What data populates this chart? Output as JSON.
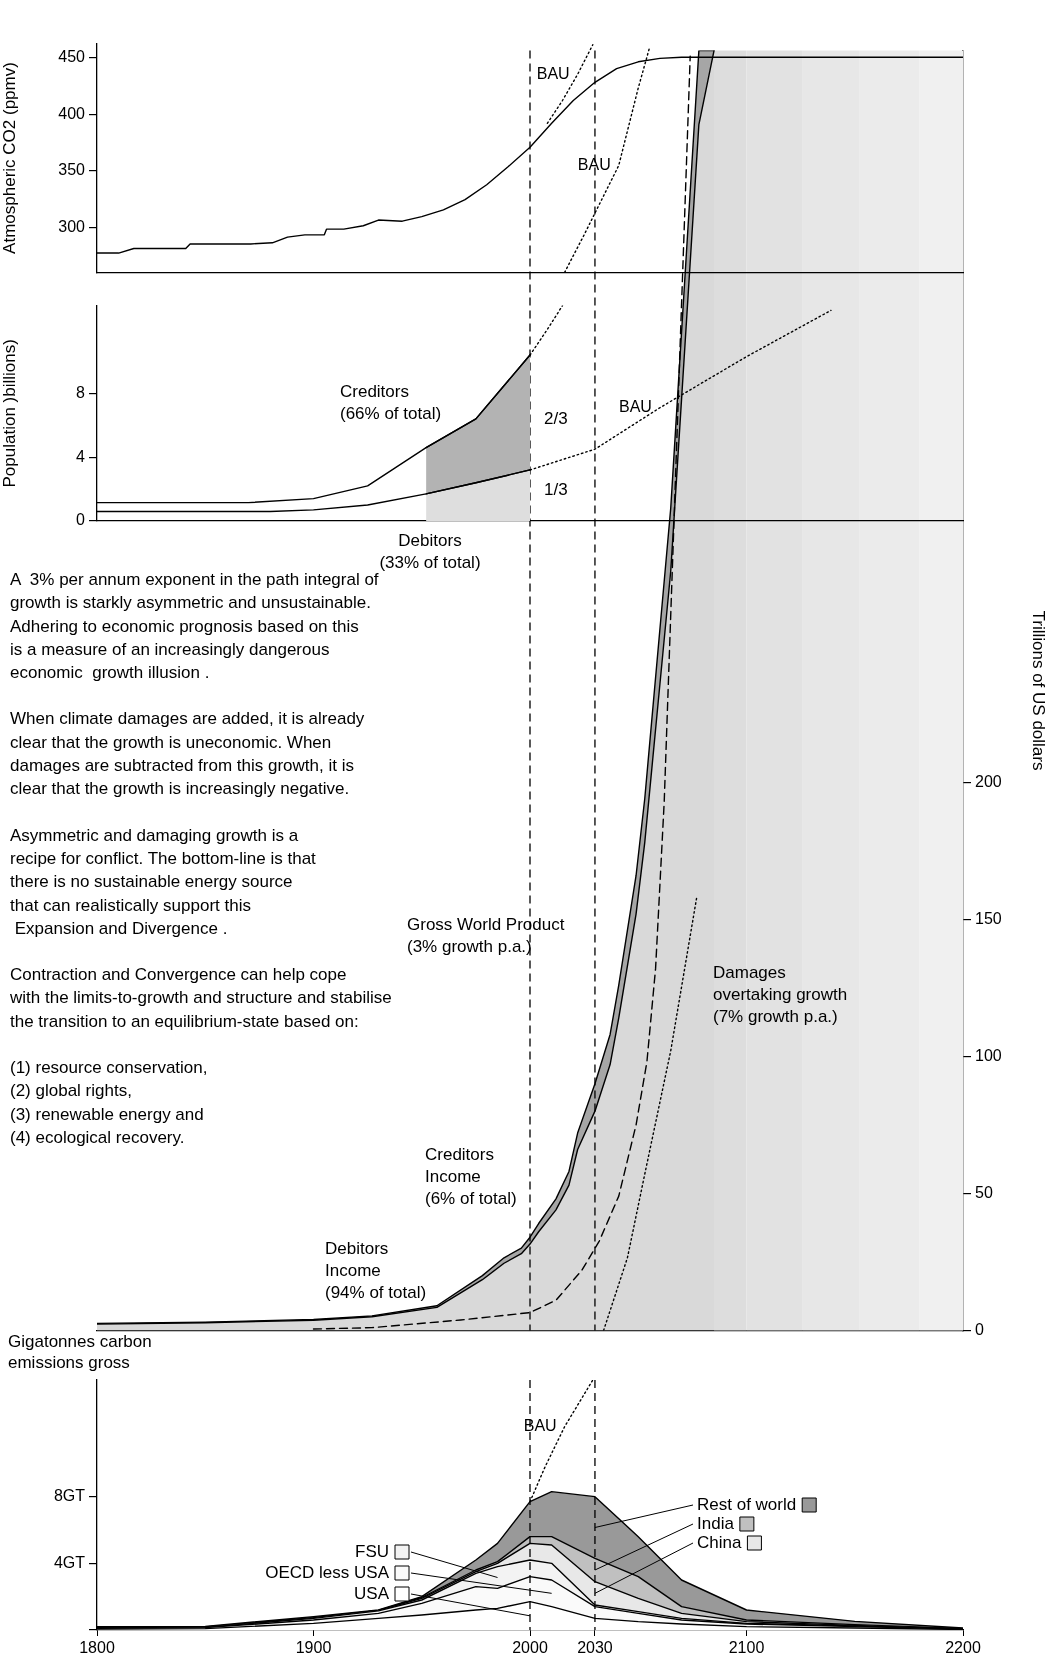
{
  "chart_data": [
    {
      "type": "line",
      "ylabel": "Atmospheric CO2 (ppmv)",
      "xlim": [
        1800,
        2200
      ],
      "ylim": [
        261,
        462
      ],
      "yticks": [
        300,
        350,
        400,
        450
      ],
      "tick_labels": "y",
      "marker": "none",
      "series": [
        {
          "color": "#000000",
          "x": [
            1800,
            1810,
            1817,
            1841,
            1843,
            1871,
            1881,
            1888,
            1896,
            1905,
            1906,
            1914,
            1923,
            1930,
            1941,
            1950,
            1960,
            1970,
            1980,
            1990,
            2000,
            2010,
            2020,
            2030,
            2040,
            2050,
            2060,
            2070,
            2080,
            2200
          ],
          "values": [
            278,
            278,
            282,
            282,
            286,
            286,
            287,
            292,
            294,
            294,
            299,
            299,
            302,
            307,
            306,
            310,
            316,
            325,
            338,
            354,
            371,
            392,
            412,
            428,
            440,
            446,
            449,
            450,
            450,
            450
          ]
        },
        {
          "name": "BAU",
          "color": "#000000",
          "line_style": "dotted",
          "x": [
            2008,
            2015,
            2022,
            2029
          ],
          "values": [
            392,
            412,
            435,
            461
          ]
        },
        {
          "name": "BAU",
          "color": "#000000",
          "line_style": "dotted",
          "x": [
            2016,
            2025,
            2041,
            2050,
            2055
          ],
          "values": [
            261,
            294,
            355,
            423,
            457
          ]
        }
      ]
    },
    {
      "type": "line",
      "ylabel": "Population )billions)",
      "xlim": [
        1800,
        2200
      ],
      "ylim": [
        0,
        13.5
      ],
      "yticks": [
        0,
        4,
        8
      ],
      "tick_labels": "y",
      "marker": "none",
      "stacked": true,
      "series": [
        {
          "color": "#000000",
          "x": [
            1800,
            1880,
            1900,
            1925,
            1952,
            1975,
            2000
          ],
          "values": [
            0.6,
            0.6,
            0.7,
            1.0,
            1.7,
            2.4,
            3.2
          ]
        },
        {
          "color": "#000000",
          "x": [
            1800,
            1870,
            1900,
            1925,
            1952,
            1975,
            2000
          ],
          "values": [
            1.15,
            1.15,
            1.4,
            2.2,
            4.6,
            6.4,
            10.4
          ]
        },
        {
          "type": "area",
          "color": "#dedede",
          "x": [
            1952,
            1975,
            2000
          ],
          "values": [
            1.7,
            2.4,
            3.2
          ]
        },
        {
          "type": "area",
          "color": "#b3b3b3",
          "x": [
            1952,
            1975,
            2000
          ],
          "values": [
            2.9,
            4.0,
            7.2
          ]
        },
        {
          "name": "BAU",
          "color": "#000000",
          "line_style": "dotted",
          "x": [
            2000,
            2030,
            2060,
            2100,
            2139
          ],
          "values": [
            3.2,
            4.5,
            7.1,
            10.3,
            13.2
          ]
        },
        {
          "color": "#000000",
          "line_style": "dotted",
          "x": [
            2000,
            2008,
            2015
          ],
          "values": [
            10.4,
            12,
            13.5
          ]
        }
      ],
      "annotations": [
        "Creditors\n(66% of total)",
        "2/3",
        "1/3",
        "Debitors\n(33% of total)"
      ]
    },
    {
      "type": "area",
      "y2label": "Trillions of US dollars",
      "xlim": [
        1800,
        2200
      ],
      "y2lim": [
        0,
        467
      ],
      "y2ticks": [
        0,
        50,
        100,
        150,
        200
      ],
      "tick_labels": "y",
      "marker": "none",
      "stacked": true,
      "series": [
        {
          "axis": "y2",
          "color": "#d9d9d9",
          "x": [
            1800,
            1850,
            1900,
            1927,
            1957,
            1978,
            1988,
            1996,
            2000,
            2004,
            2012,
            2018,
            2022,
            2030,
            2037,
            2041,
            2049,
            2053,
            2065,
            2078,
            2085
          ],
          "values": [
            2.3,
            2.8,
            3.7,
            5,
            8.4,
            18.5,
            24.5,
            28,
            31.5,
            36,
            44,
            53,
            66,
            80,
            97,
            114,
            152,
            178,
            277,
            440,
            467
          ]
        },
        {
          "axis": "y2",
          "color": "#a6a6a6",
          "x": [
            1800,
            1850,
            1900,
            1927,
            1957,
            1978,
            1988,
            1996,
            2000,
            2004,
            2012,
            2018,
            2022,
            2030,
            2037,
            2041,
            2049,
            2053,
            2065,
            2078,
            2085
          ],
          "values": [
            0.2,
            0.2,
            0.3,
            0.3,
            0.6,
            1.5,
            2,
            2,
            2.5,
            3,
            4,
            5,
            6,
            10,
            11,
            12,
            14,
            16,
            23,
            27,
            0
          ]
        },
        {
          "type": "line",
          "axis": "y2",
          "color": "#000000",
          "line_style": "dashed",
          "x": [
            1900,
            1927,
            1968,
            2000,
            2012,
            2024,
            2032,
            2041,
            2049,
            2054,
            2058,
            2062,
            2074
          ],
          "values": [
            0.5,
            1,
            3.8,
            6.5,
            11,
            22,
            32.6,
            49,
            75,
            98,
            132,
            193,
            465
          ]
        },
        {
          "type": "line",
          "axis": "y2",
          "color": "#000000",
          "line_style": "dotted",
          "x": [
            2034,
            2045,
            2053,
            2065,
            2077
          ],
          "values": [
            0,
            26.5,
            57,
            102,
            158
          ]
        }
      ],
      "ref_lines": [
        {
          "axis": "x",
          "value": 2000,
          "line_style": "dashed"
        },
        {
          "axis": "x",
          "value": 2030,
          "line_style": "dashed"
        }
      ],
      "bands": [
        {
          "axis": "x",
          "from": 2085,
          "to": 2100,
          "color": "#dddddd"
        },
        {
          "axis": "x",
          "from": 2100,
          "to": 2126,
          "color": "#e2e2e2"
        },
        {
          "axis": "x",
          "from": 2126,
          "to": 2152,
          "color": "#e7e7e7"
        },
        {
          "axis": "x",
          "from": 2152,
          "to": 2180,
          "color": "#ebebeb"
        },
        {
          "axis": "x",
          "from": 2180,
          "to": 2200,
          "color": "#f0f0f0"
        }
      ],
      "annotations": [
        "A  3% per annum exponent in the path integral of\ngrowth is starkly asymmetric and unsustainable.\nAdhering to economic prognosis based on this\nis a measure of an increasingly dangerous\neconomic  growth illusion .",
        "When climate damages are added, it is already\nclear that the growth is uneconomic. When\ndamages are subtracted from this growth, it is\nclear that the growth is increasingly negative.",
        "Asymmetric and damaging growth is a\nrecipe for conflict. The bottom-line is that\nthere is no sustainable energy source\nthat can realistically support this\n Expansion and Divergence .",
        "Contraction and Convergence can help cope\nwith the limits-to-growth and structure and stabilise\nthe transition to an equilibrium-state based on:",
        "(1) resource conservation,\n(2) global rights,\n(3) renewable energy and\n(4) ecological recovery.",
        "Gross World Product\n(3% growth p.a.)",
        "Damages\novertaking growth\n(7% growth p.a.)",
        "Creditors\nIncome\n(6% of total)",
        "Debitors\nIncome\n(94% of total)"
      ]
    },
    {
      "type": "area",
      "ylabel": "Gigatonnes carbon\nemissions gross",
      "xlim": [
        1800,
        2200
      ],
      "ylim": [
        0,
        15
      ],
      "yticks": [
        {
          "value": 0,
          "label": null
        },
        {
          "value": 4,
          "label": "4GT"
        },
        {
          "value": 8,
          "label": "8GT"
        }
      ],
      "xticks": [
        1800,
        1900,
        2000,
        2030,
        2100,
        2200
      ],
      "marker": "none",
      "stacked": true,
      "legend": "right",
      "x": [
        1800,
        1850,
        1900,
        1930,
        1950,
        1975,
        1985,
        2000,
        2010,
        2030,
        2050,
        2070,
        2100,
        2150,
        2200
      ],
      "series": [
        {
          "name": "USA",
          "color": "#ffffff",
          "values": [
            0.05,
            0.08,
            0.4,
            0.7,
            0.9,
            1.2,
            1.3,
            1.7,
            1.4,
            0.7,
            0.5,
            0.36,
            0.2,
            0.12,
            0.03
          ]
        },
        {
          "name": "OECD less USA",
          "color": "#fafafa",
          "values": [
            0.05,
            0.06,
            0.2,
            0.3,
            0.7,
            1.4,
            1.2,
            1.5,
            1.6,
            0.7,
            0.5,
            0.24,
            0.16,
            0.08,
            0.02
          ]
        },
        {
          "name": "FSU",
          "color": "#f3f3f3",
          "values": [
            0.02,
            0.02,
            0.1,
            0.15,
            0.2,
            0.8,
            1.3,
            1.0,
            1.0,
            0.1,
            0.1,
            0.1,
            0.04,
            0.04,
            0.01
          ]
        },
        {
          "name": "China",
          "color": "#e8e8e8",
          "values": [
            0.02,
            0.01,
            0.02,
            0.02,
            0.1,
            0.1,
            0.2,
            1.0,
            1.1,
            1.4,
            0.8,
            0.3,
            0.1,
            0.04,
            0.01
          ]
        },
        {
          "name": "India",
          "color": "#c0c0c0",
          "values": [
            0.01,
            0.01,
            0.02,
            0.01,
            0.05,
            0.1,
            0.1,
            0.4,
            0.5,
            1.4,
            1.3,
            0.4,
            0.1,
            0.04,
            0.01
          ]
        },
        {
          "name": "Rest of world",
          "color": "#999999",
          "values": [
            0.05,
            0.04,
            0.06,
            0.02,
            0.05,
            0.6,
            1.1,
            2.1,
            2.7,
            3.7,
            2.4,
            1.6,
            0.6,
            0.2,
            0.04
          ]
        },
        {
          "type": "line",
          "name": "BAU",
          "color": "#000000",
          "line_style": "dotted",
          "x": [
            2000,
            2007,
            2016,
            2029
          ],
          "values": [
            7.7,
            9.8,
            12.2,
            15
          ]
        }
      ],
      "ref_lines": [
        {
          "axis": "x",
          "value": 2000,
          "line_style": "dashed"
        },
        {
          "axis": "x",
          "value": 2030,
          "line_style": "dashed"
        }
      ]
    }
  ]
}
